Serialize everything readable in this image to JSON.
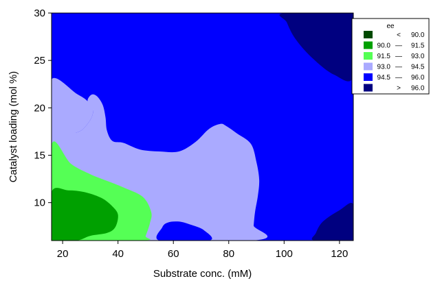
{
  "chart_data": {
    "type": "contour",
    "xlabel": "Substrate conc. (mM)",
    "ylabel": "Catalyst loading (mol %)",
    "xlim": [
      16,
      125
    ],
    "ylim": [
      6,
      30
    ],
    "xticks": [
      20,
      40,
      60,
      80,
      100,
      120
    ],
    "yticks": [
      10,
      15,
      20,
      25,
      30
    ],
    "legend": {
      "title": "ee",
      "placement": "right",
      "entries": [
        {
          "label_left": "",
          "label_mid": "<",
          "label_right": "90.0",
          "color": "#004a00"
        },
        {
          "label_left": "90.0",
          "label_mid": "—",
          "label_right": "91.5",
          "color": "#00a000"
        },
        {
          "label_left": "91.5",
          "label_mid": "—",
          "label_right": "93.0",
          "color": "#55ff55"
        },
        {
          "label_left": "93.0",
          "label_mid": "—",
          "label_right": "94.5",
          "color": "#aaaaff"
        },
        {
          "label_left": "94.5",
          "label_mid": "—",
          "label_right": "96.0",
          "color": "#0000ff"
        },
        {
          "label_left": "",
          "label_mid": ">",
          "label_right": "96.0",
          "color": "#000080"
        }
      ]
    },
    "regions": [
      {
        "level": "94.5 — 96.0",
        "color": "#0000ff",
        "points": [
          [
            16,
            6
          ],
          [
            125,
            6
          ],
          [
            125,
            30
          ],
          [
            16,
            30
          ]
        ]
      },
      {
        "level": "> 96.0",
        "color": "#000080",
        "points": [
          [
            100,
            30
          ],
          [
            125,
            30
          ],
          [
            125,
            23.3
          ],
          [
            118,
            23.5
          ],
          [
            110,
            25.3
          ],
          [
            104,
            27.3
          ],
          [
            101,
            29
          ]
        ]
      },
      {
        "level": "> 96.0",
        "color": "#000080",
        "points": [
          [
            111,
            6
          ],
          [
            125,
            6
          ],
          [
            125,
            9.8
          ],
          [
            120,
            9.2
          ],
          [
            114,
            8.0
          ],
          [
            111.5,
            6.8
          ]
        ]
      },
      {
        "level": "93.0 — 94.5",
        "color": "#aaaaff",
        "points": [
          [
            16,
            23
          ],
          [
            25,
            21.5
          ],
          [
            29,
            20.7
          ],
          [
            31,
            19.6
          ],
          [
            29,
            18.3
          ],
          [
            25,
            17.4
          ],
          [
            16,
            17.4
          ]
        ]
      },
      {
        "level": "93.0 — 94.5",
        "color": "#aaaaff",
        "points": [
          [
            16,
            17.4
          ],
          [
            25,
            17.4
          ],
          [
            29,
            18.3
          ],
          [
            31,
            19.6
          ],
          [
            29,
            20.7
          ],
          [
            30.5,
            21.4
          ],
          [
            32.5,
            21.2
          ],
          [
            34.5,
            20.3
          ],
          [
            35.5,
            19
          ],
          [
            36,
            17.6
          ],
          [
            38,
            16.5
          ],
          [
            42,
            16.3
          ],
          [
            48,
            15.6
          ],
          [
            55,
            15.4
          ],
          [
            62,
            15.4
          ],
          [
            68,
            16.4
          ],
          [
            73,
            17.8
          ],
          [
            77,
            18.3
          ],
          [
            79,
            18.1
          ],
          [
            83,
            17.3
          ],
          [
            88,
            16.2
          ],
          [
            90,
            14.3
          ],
          [
            91,
            12.4
          ],
          [
            90.5,
            10.7
          ],
          [
            89.5,
            9
          ],
          [
            89,
            7.6
          ],
          [
            88.5,
            6
          ],
          [
            16,
            6
          ]
        ]
      },
      {
        "level": "94.5 — 96.0",
        "color": "#0000ff",
        "points": [
          [
            55,
            6
          ],
          [
            56,
            7.4
          ],
          [
            58,
            7.9
          ],
          [
            62,
            8
          ],
          [
            66,
            7.7
          ],
          [
            71,
            7.1
          ],
          [
            73,
            6
          ]
        ]
      },
      {
        "level": "91.5 — 93.0",
        "color": "#55ff55",
        "points": [
          [
            16,
            16.1
          ],
          [
            23,
            14.1
          ],
          [
            30,
            13
          ],
          [
            36,
            12.3
          ],
          [
            42,
            11.6
          ],
          [
            49,
            10.6
          ],
          [
            52,
            9
          ],
          [
            51.5,
            7.8
          ],
          [
            50,
            6.5
          ],
          [
            49,
            6
          ],
          [
            16,
            6
          ]
        ]
      },
      {
        "level": "90.0 — 91.5",
        "color": "#00a000",
        "points": [
          [
            16,
            11.1
          ],
          [
            22,
            11.3
          ],
          [
            28,
            11.1
          ],
          [
            34,
            10.5
          ],
          [
            38,
            9.6
          ],
          [
            40,
            8.7
          ],
          [
            39,
            7.4
          ],
          [
            36,
            6.8
          ],
          [
            30,
            6.5
          ],
          [
            25,
            6
          ],
          [
            16,
            6
          ]
        ]
      }
    ]
  }
}
